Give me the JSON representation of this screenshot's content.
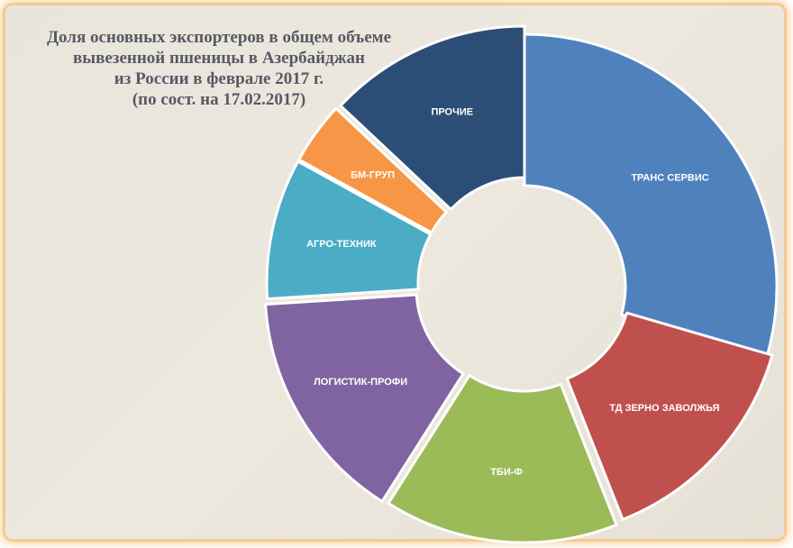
{
  "chart_data": {
    "type": "pie",
    "donut": true,
    "title_lines": [
      "Доля основных экспортеров в общем объеме",
      "вывезенной пшеницы в Азербайджан",
      "из России в феврале 2017 г.",
      "(по сост.  на 17.02.2017)"
    ],
    "slices": [
      {
        "label": "ТРАНС СЕРВИС",
        "value": 29.5,
        "color": "#4f81bd"
      },
      {
        "label": "ТД ЗЕРНО ЗАВОЛЖЬЯ",
        "value": 14.5,
        "color": "#c0504d"
      },
      {
        "label": "ТБИ-Ф",
        "value": 15.0,
        "color": "#9bbb59"
      },
      {
        "label": "ЛОГИСТИК-ПРОФИ",
        "value": 15.0,
        "color": "#8064a2"
      },
      {
        "label": "АГРО-ТЕХНИК",
        "value": 9.0,
        "color": "#4bacc6"
      },
      {
        "label": "БМ-ГРУП",
        "value": 4.0,
        "color": "#f79646"
      },
      {
        "label": "ПРОЧИЕ",
        "value": 13.0,
        "color": "#2c4d75"
      }
    ]
  }
}
